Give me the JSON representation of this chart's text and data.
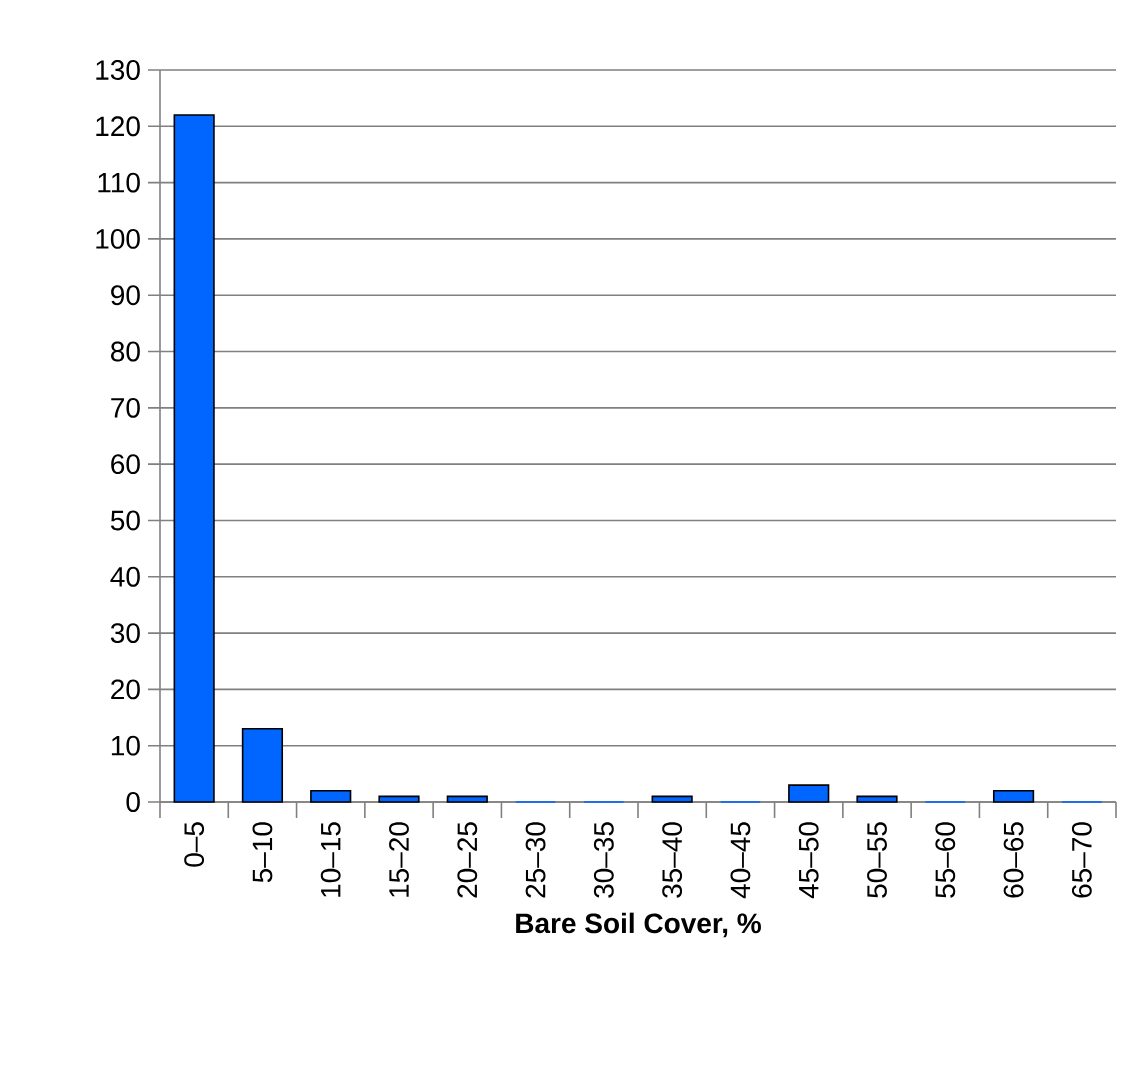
{
  "chart_data": {
    "type": "bar",
    "xlabel": "Bare Soil Cover, %",
    "categories": [
      "0–5",
      "5–10",
      "10–15",
      "15–20",
      "20–25",
      "25–30",
      "30–35",
      "35–40",
      "40–45",
      "45–50",
      "50–55",
      "55–60",
      "60–65",
      "65–70"
    ],
    "values": [
      122,
      13,
      2,
      1,
      1,
      0,
      0,
      1,
      0,
      3,
      1,
      0,
      2,
      0
    ],
    "color": "#0066ff",
    "ylim": [
      0,
      130
    ],
    "yticks": [
      0,
      10,
      20,
      30,
      40,
      50,
      60,
      70,
      80,
      90,
      100,
      110,
      120,
      130
    ],
    "grid": "y"
  }
}
